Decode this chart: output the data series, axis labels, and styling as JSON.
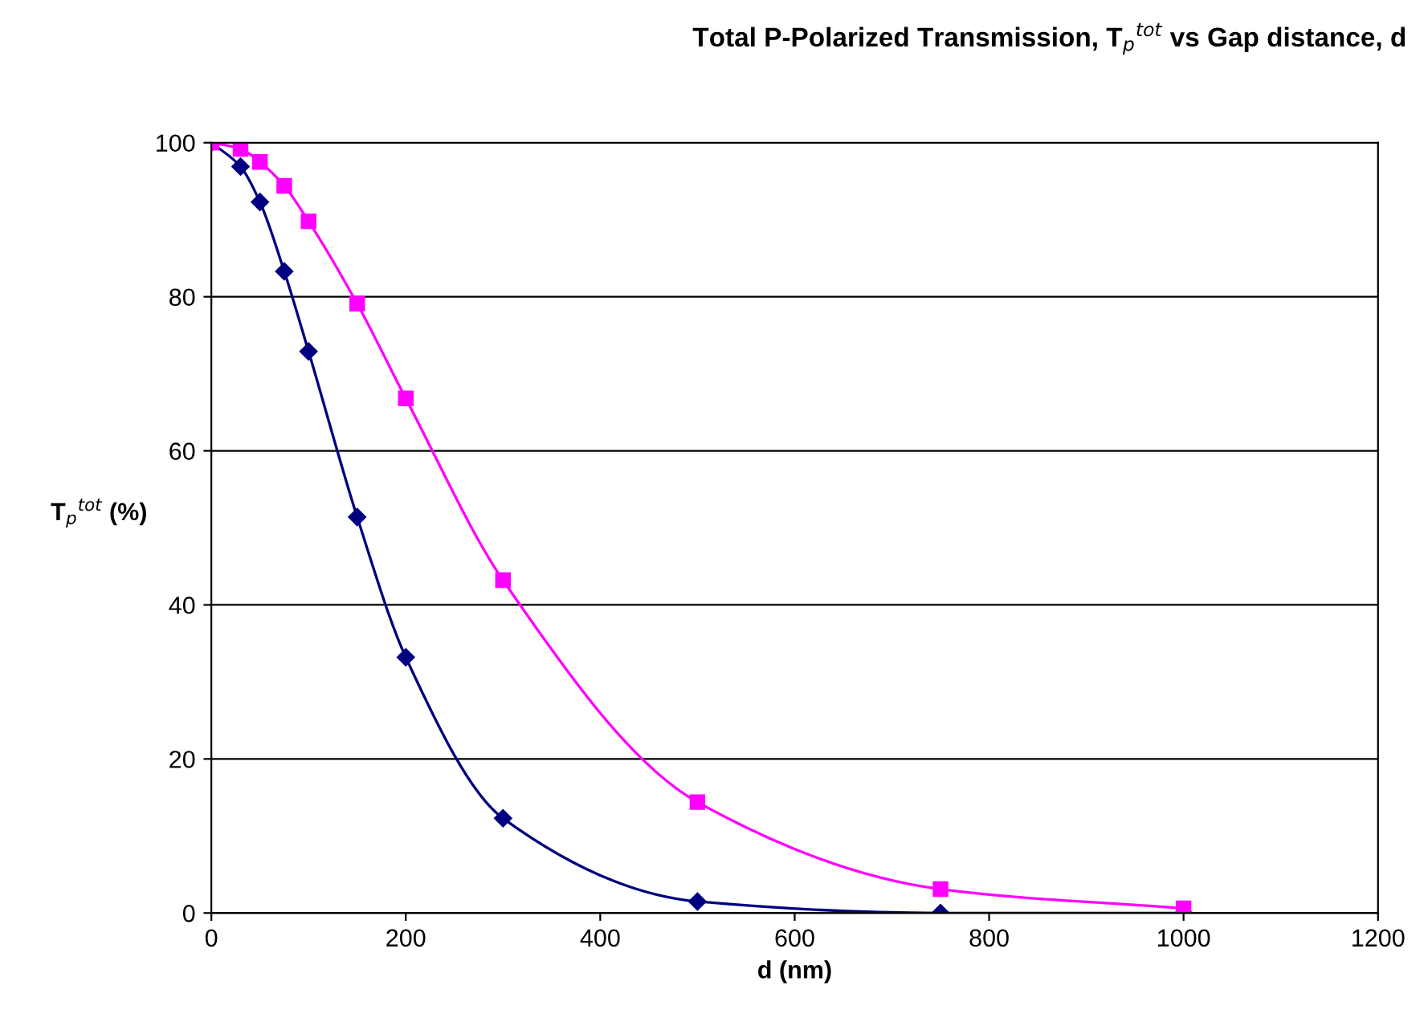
{
  "chart_data": {
    "type": "line",
    "title": "Total P-Polarized Transmission, T$_{p}$$^{tot}$ vs Gap distance, d",
    "xlabel": "d (nm)",
    "ylabel": "T$_{p}$$^{tot}$ (%)",
    "x": [
      0,
      30,
      50,
      75,
      100,
      150,
      200,
      300,
      500,
      750,
      1000
    ],
    "series": [
      {
        "color": "#000080",
        "marker": "diamond",
        "values": [
          100,
          96.9,
          92.3,
          83.3,
          72.9,
          51.4,
          33.2,
          12.3,
          1.5,
          0,
          0
        ]
      },
      {
        "color": "#ff00ff",
        "marker": "square",
        "values": [
          100,
          99.2,
          97.5,
          94.4,
          89.8,
          79.1,
          66.8,
          43.2,
          14.4,
          3.1,
          0.6
        ]
      }
    ],
    "xlim": [
      0,
      1200
    ],
    "xticks": [
      0,
      200,
      400,
      600,
      800,
      1000,
      1200
    ],
    "ylim": [
      0,
      100
    ],
    "yticks": [
      0,
      20,
      40,
      60,
      80,
      100
    ],
    "grid": "y",
    "legend": false,
    "line_style": "solid"
  }
}
